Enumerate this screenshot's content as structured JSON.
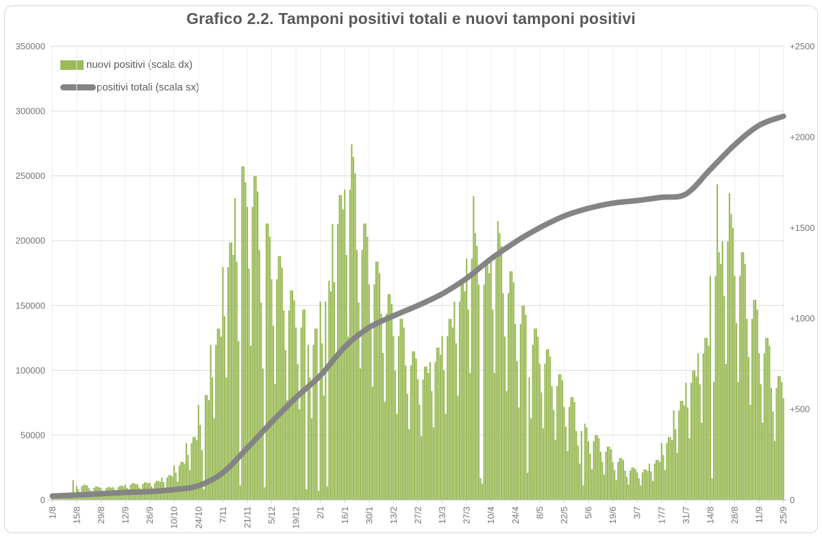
{
  "title": "Grafico 2.2. Tamponi positivi totali e nuovi tamponi positivi",
  "legend": [
    {
      "label": "nuovi positivi (scala dx)",
      "series": "bars",
      "color": "#9bbb59"
    },
    {
      "label": "positivi totali (scala sx)",
      "series": "line",
      "color": "#848484"
    }
  ],
  "colors": {
    "bars": "#9bbb59",
    "line": "#848484",
    "horizontal_grid": "#dcdcdc",
    "vertical_grid": "#ececec",
    "axis_line": "#c6c6c6",
    "axis_text": "#737373",
    "title_text": "#595959",
    "frame_border": "#d6d6d6"
  },
  "chart_data": {
    "type": "bar",
    "subtype": "combo dual-axis: daily bars (right scale) + cumulative line (left scale)",
    "title": "Grafico 2.2. Tamponi positivi totali e nuovi tamponi positivi",
    "grid": true,
    "legend_position": "top-left-inside",
    "left_axis": {
      "series": "positivi totali (scala sx)",
      "min": 0,
      "max": 350000,
      "step": 50000,
      "ticks": [
        "0",
        "50000",
        "100000",
        "150000",
        "200000",
        "250000",
        "300000",
        "350000"
      ]
    },
    "right_axis": {
      "series": "nuovi positivi (scala dx)",
      "min": 0,
      "max": 2500,
      "step": 500,
      "ticks": [
        "0",
        "+500",
        "+1000",
        "+1500",
        "+2000",
        "+2500"
      ]
    },
    "x_axis": {
      "description": "daily data from 1/8 (2020) to 25/9 (2021), tick label every 14 days, labels rotated 90deg",
      "days_per_tick": 14,
      "tick_labels": [
        "1/8",
        "15/8",
        "29/8",
        "12/9",
        "26/9",
        "10/10",
        "24/10",
        "7/11",
        "21/11",
        "5/12",
        "19/12",
        "2/1",
        "16/1",
        "30/1",
        "13/2",
        "27/2",
        "13/3",
        "27/3",
        "10/4",
        "24/4",
        "8/5",
        "22/5",
        "5/6",
        "19/6",
        "3/7",
        "17/7",
        "31/7",
        "14/8",
        "28/8",
        "11/9",
        "25/9"
      ]
    },
    "bars": {
      "name": "nuovi positivi (scala dx)",
      "color": "#9bbb59",
      "scale": "right",
      "daily_values": [
        20,
        16,
        10,
        19,
        21,
        21,
        20,
        38,
        30,
        20,
        38,
        42,
        110,
        40,
        76,
        60,
        40,
        76,
        84,
        84,
        80,
        67,
        53,
        35,
        67,
        74,
        74,
        70,
        65,
        51,
        34,
        65,
        71,
        71,
        68,
        71,
        56,
        38,
        71,
        79,
        79,
        75,
        84,
        66,
        44,
        84,
        92,
        92,
        88,
        87,
        69,
        46,
        87,
        97,
        97,
        92,
        95,
        75,
        50,
        95,
        105,
        105,
        100,
        124,
        98,
        65,
        124,
        137,
        137,
        130,
        190,
        150,
        100,
        190,
        210,
        210,
        200,
        314,
        248,
        165,
        314,
        347,
        347,
        330,
        523,
        413,
        275,
        60,
        578,
        578,
        550,
        855,
        675,
        450,
        855,
        945,
        945,
        900,
        1283,
        1013,
        675,
        1283,
        1418,
        1418,
        1350,
        1663,
        1313,
        875,
        80,
        1838,
        1838,
        1750,
        1615,
        1275,
        850,
        1615,
        1785,
        1785,
        1700,
        1378,
        1088,
        725,
        70,
        1523,
        1523,
        1450,
        1216,
        960,
        640,
        1216,
        1344,
        1344,
        1280,
        1045,
        825,
        550,
        1045,
        1155,
        1155,
        1100,
        950,
        750,
        500,
        950,
        1050,
        1050,
        60,
        855,
        675,
        450,
        855,
        945,
        945,
        50,
        1093,
        863,
        575,
        1093,
        75,
        1208,
        1150,
        1520,
        1200,
        800,
        1520,
        1680,
        1680,
        1600,
        1710,
        1350,
        900,
        1710,
        1960,
        1890,
        1800,
        1378,
        1088,
        725,
        1378,
        1523,
        1523,
        1450,
        1188,
        938,
        625,
        1188,
        1313,
        1313,
        1250,
        1026,
        810,
        540,
        1026,
        1134,
        1134,
        1080,
        903,
        713,
        475,
        903,
        998,
        998,
        950,
        741,
        585,
        390,
        741,
        819,
        819,
        780,
        665,
        525,
        350,
        665,
        735,
        735,
        700,
        760,
        600,
        400,
        760,
        840,
        840,
        800,
        903,
        713,
        475,
        903,
        998,
        998,
        950,
        1093,
        863,
        575,
        1093,
        1208,
        1208,
        1150,
        1330,
        1050,
        700,
        1330,
        1674,
        1470,
        1400,
        1188,
        120,
        90,
        1188,
        1313,
        1313,
        1250,
        1330,
        1050,
        700,
        1330,
        1536,
        1470,
        1400,
        1140,
        900,
        600,
        1140,
        1260,
        1260,
        1200,
        969,
        765,
        510,
        969,
        1071,
        1071,
        1020,
        150,
        675,
        450,
        855,
        945,
        945,
        900,
        751,
        593,
        395,
        751,
        830,
        830,
        790,
        627,
        495,
        330,
        627,
        693,
        693,
        660,
        513,
        405,
        270,
        513,
        567,
        567,
        540,
        380,
        300,
        200,
        380,
        80,
        420,
        400,
        323,
        255,
        170,
        323,
        357,
        357,
        340,
        266,
        210,
        140,
        266,
        294,
        294,
        280,
        209,
        165,
        110,
        209,
        231,
        231,
        220,
        162,
        128,
        85,
        162,
        179,
        179,
        170,
        152,
        120,
        80,
        152,
        168,
        168,
        160,
        200,
        158,
        105,
        200,
        221,
        221,
        210,
        314,
        248,
        165,
        314,
        347,
        347,
        330,
        494,
        390,
        260,
        494,
        546,
        546,
        520,
        646,
        510,
        340,
        646,
        714,
        714,
        680,
        808,
        638,
        425,
        808,
        893,
        893,
        850,
        1235,
        120,
        650,
        1235,
        1739,
        1365,
        1300,
        1425,
        1125,
        750,
        1425,
        1690,
        1575,
        1500,
        1235,
        975,
        650,
        1235,
        1365,
        1365,
        1300,
        998,
        788,
        525,
        998,
        1103,
        1103,
        1050,
        808,
        638,
        425,
        808,
        893,
        893,
        850,
        618,
        488,
        325,
        618,
        683,
        683,
        650,
        560
      ]
    },
    "line": {
      "name": "positivi totali (scala sx)",
      "color": "#848484",
      "scale": "left",
      "values_at_ticks": [
        3000,
        3800,
        4800,
        5800,
        6500,
        8000,
        11000,
        21000,
        40000,
        60000,
        79000,
        96000,
        118000,
        133000,
        142000,
        150000,
        159000,
        171000,
        186000,
        199000,
        210000,
        219000,
        225000,
        229000,
        231000,
        233500,
        236000,
        255000,
        274000,
        289000,
        296000
      ]
    }
  }
}
